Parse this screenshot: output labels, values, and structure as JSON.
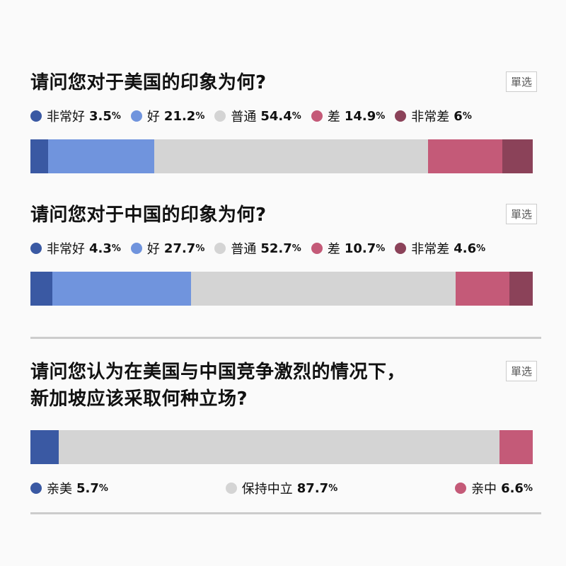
{
  "badge_label": "單选",
  "chart_data": [
    {
      "type": "bar",
      "stacked": true,
      "orientation": "horizontal",
      "title": "请问您对于美国的印象为何?",
      "categories": [
        "非常好",
        "好",
        "普通",
        "差",
        "非常差"
      ],
      "values": [
        3.5,
        21.2,
        54.4,
        14.9,
        6
      ],
      "value_labels": [
        "3.5",
        "21.2",
        "54.4",
        "14.9",
        "6"
      ],
      "colors": [
        "#3a59a3",
        "#7094dd",
        "#d4d4d4",
        "#c45a78",
        "#8b4259"
      ]
    },
    {
      "type": "bar",
      "stacked": true,
      "orientation": "horizontal",
      "title": "请问您对于中国的印象为何?",
      "categories": [
        "非常好",
        "好",
        "普通",
        "差",
        "非常差"
      ],
      "values": [
        4.3,
        27.7,
        52.7,
        10.7,
        4.6
      ],
      "value_labels": [
        "4.3",
        "27.7",
        "52.7",
        "10.7",
        "4.6"
      ],
      "colors": [
        "#3a59a3",
        "#7094dd",
        "#d4d4d4",
        "#c45a78",
        "#8b4259"
      ]
    },
    {
      "type": "bar",
      "stacked": true,
      "orientation": "horizontal",
      "title_lines": [
        "请问您认为在美国与中国竞争激烈的情况下，",
        "新加坡应该采取何种立场?"
      ],
      "categories": [
        "亲美",
        "保持中立",
        "亲中"
      ],
      "values": [
        5.7,
        87.7,
        6.6
      ],
      "value_labels": [
        "5.7",
        "87.7",
        "6.6"
      ],
      "colors": [
        "#3a59a3",
        "#d4d4d4",
        "#c45a78"
      ]
    }
  ],
  "percent_sign": "%"
}
